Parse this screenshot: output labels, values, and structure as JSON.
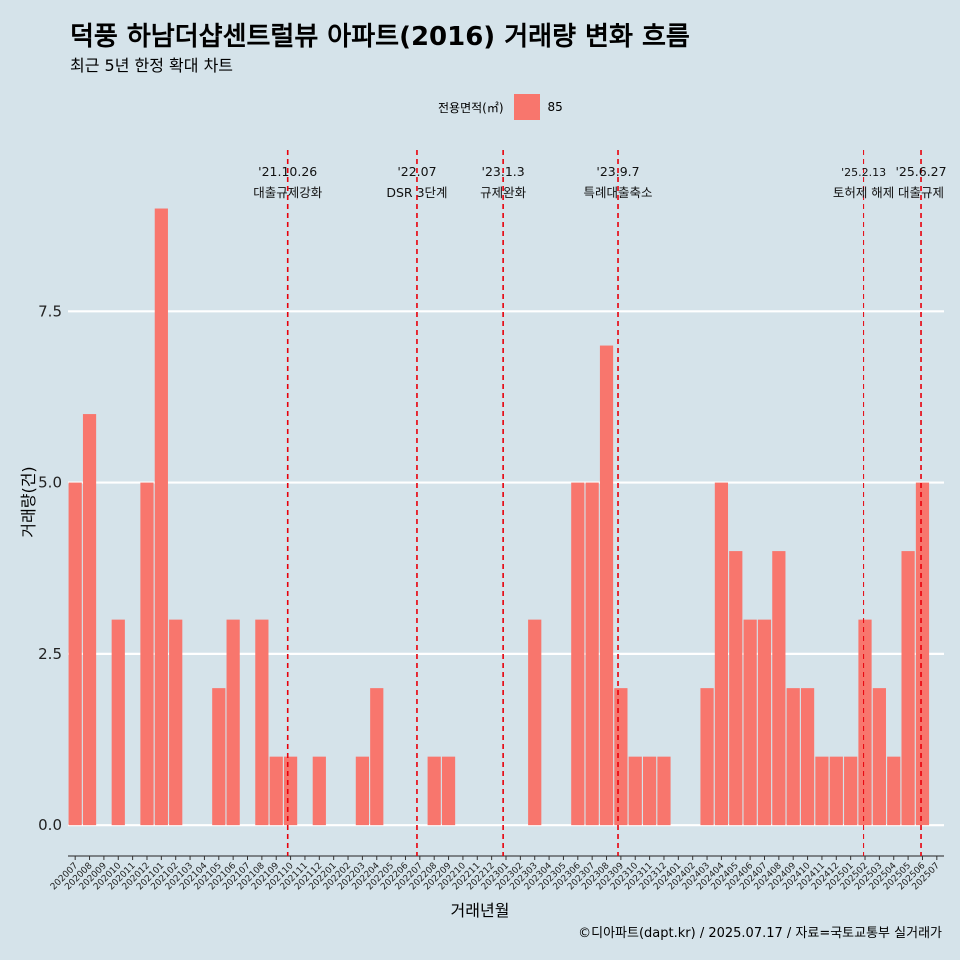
{
  "header": {
    "title": "덕풍 하남더샵센트럴뷰 아파트(2016) 거래량 변화 흐름",
    "subtitle": "최근 5년 한정 확대 차트"
  },
  "legend": {
    "title": "전용면적(㎡)",
    "item": "85",
    "color": "#f8766d"
  },
  "caption": "©디아파트(dapt.kr) / 2025.07.17 / 자료=국토교통부 실거래가",
  "chart_data": {
    "type": "bar",
    "xlabel": "거래년월",
    "ylabel": "거래량(건)",
    "ylim": [
      -0.45,
      10
    ],
    "yticks": [
      "0.0",
      "2.5",
      "5.0",
      "7.5"
    ],
    "bar_color": "#f8766d",
    "categories": [
      "202007",
      "202008",
      "202009",
      "202010",
      "202011",
      "202012",
      "202101",
      "202102",
      "202103",
      "202104",
      "202105",
      "202106",
      "202107",
      "202108",
      "202109",
      "202110",
      "202111",
      "202112",
      "202201",
      "202202",
      "202203",
      "202204",
      "202205",
      "202206",
      "202207",
      "202208",
      "202209",
      "202210",
      "202211",
      "202212",
      "202301",
      "202302",
      "202303",
      "202304",
      "202305",
      "202306",
      "202307",
      "202308",
      "202309",
      "202310",
      "202311",
      "202312",
      "202401",
      "202402",
      "202403",
      "202404",
      "202405",
      "202406",
      "202407",
      "202408",
      "202409",
      "202410",
      "202411",
      "202412",
      "202501",
      "202502",
      "202503",
      "202504",
      "202505",
      "202506",
      "202507"
    ],
    "series": [
      {
        "name": "85",
        "values": [
          5,
          6,
          0,
          3,
          0,
          5,
          9,
          3,
          0,
          0,
          2,
          3,
          0,
          3,
          1,
          1,
          0,
          1,
          0,
          0,
          1,
          2,
          0,
          0,
          0,
          1,
          1,
          0,
          0,
          0,
          0,
          0,
          3,
          0,
          0,
          5,
          5,
          7,
          2,
          1,
          1,
          1,
          0,
          0,
          2,
          5,
          4,
          3,
          3,
          4,
          2,
          2,
          1,
          1,
          1,
          3,
          2,
          1,
          4,
          5,
          0
        ]
      }
    ],
    "annotations": [
      {
        "date": "'21.10.26",
        "label": "대출규제강화",
        "position": 15.3
      },
      {
        "date": "'22.07",
        "label": "DSR 3단계",
        "position": 24.3
      },
      {
        "date": "'23.1.3",
        "label": "규제완화",
        "position": 30.3
      },
      {
        "date": "'23.9.7",
        "label": "특례대출축소",
        "position": 38.3
      },
      {
        "date": "'25.2.13",
        "label": "토허제 해제",
        "position": 55.4
      },
      {
        "date": "'25.6.27",
        "label": "대출규제",
        "position": 59.4
      }
    ],
    "grid": true
  }
}
